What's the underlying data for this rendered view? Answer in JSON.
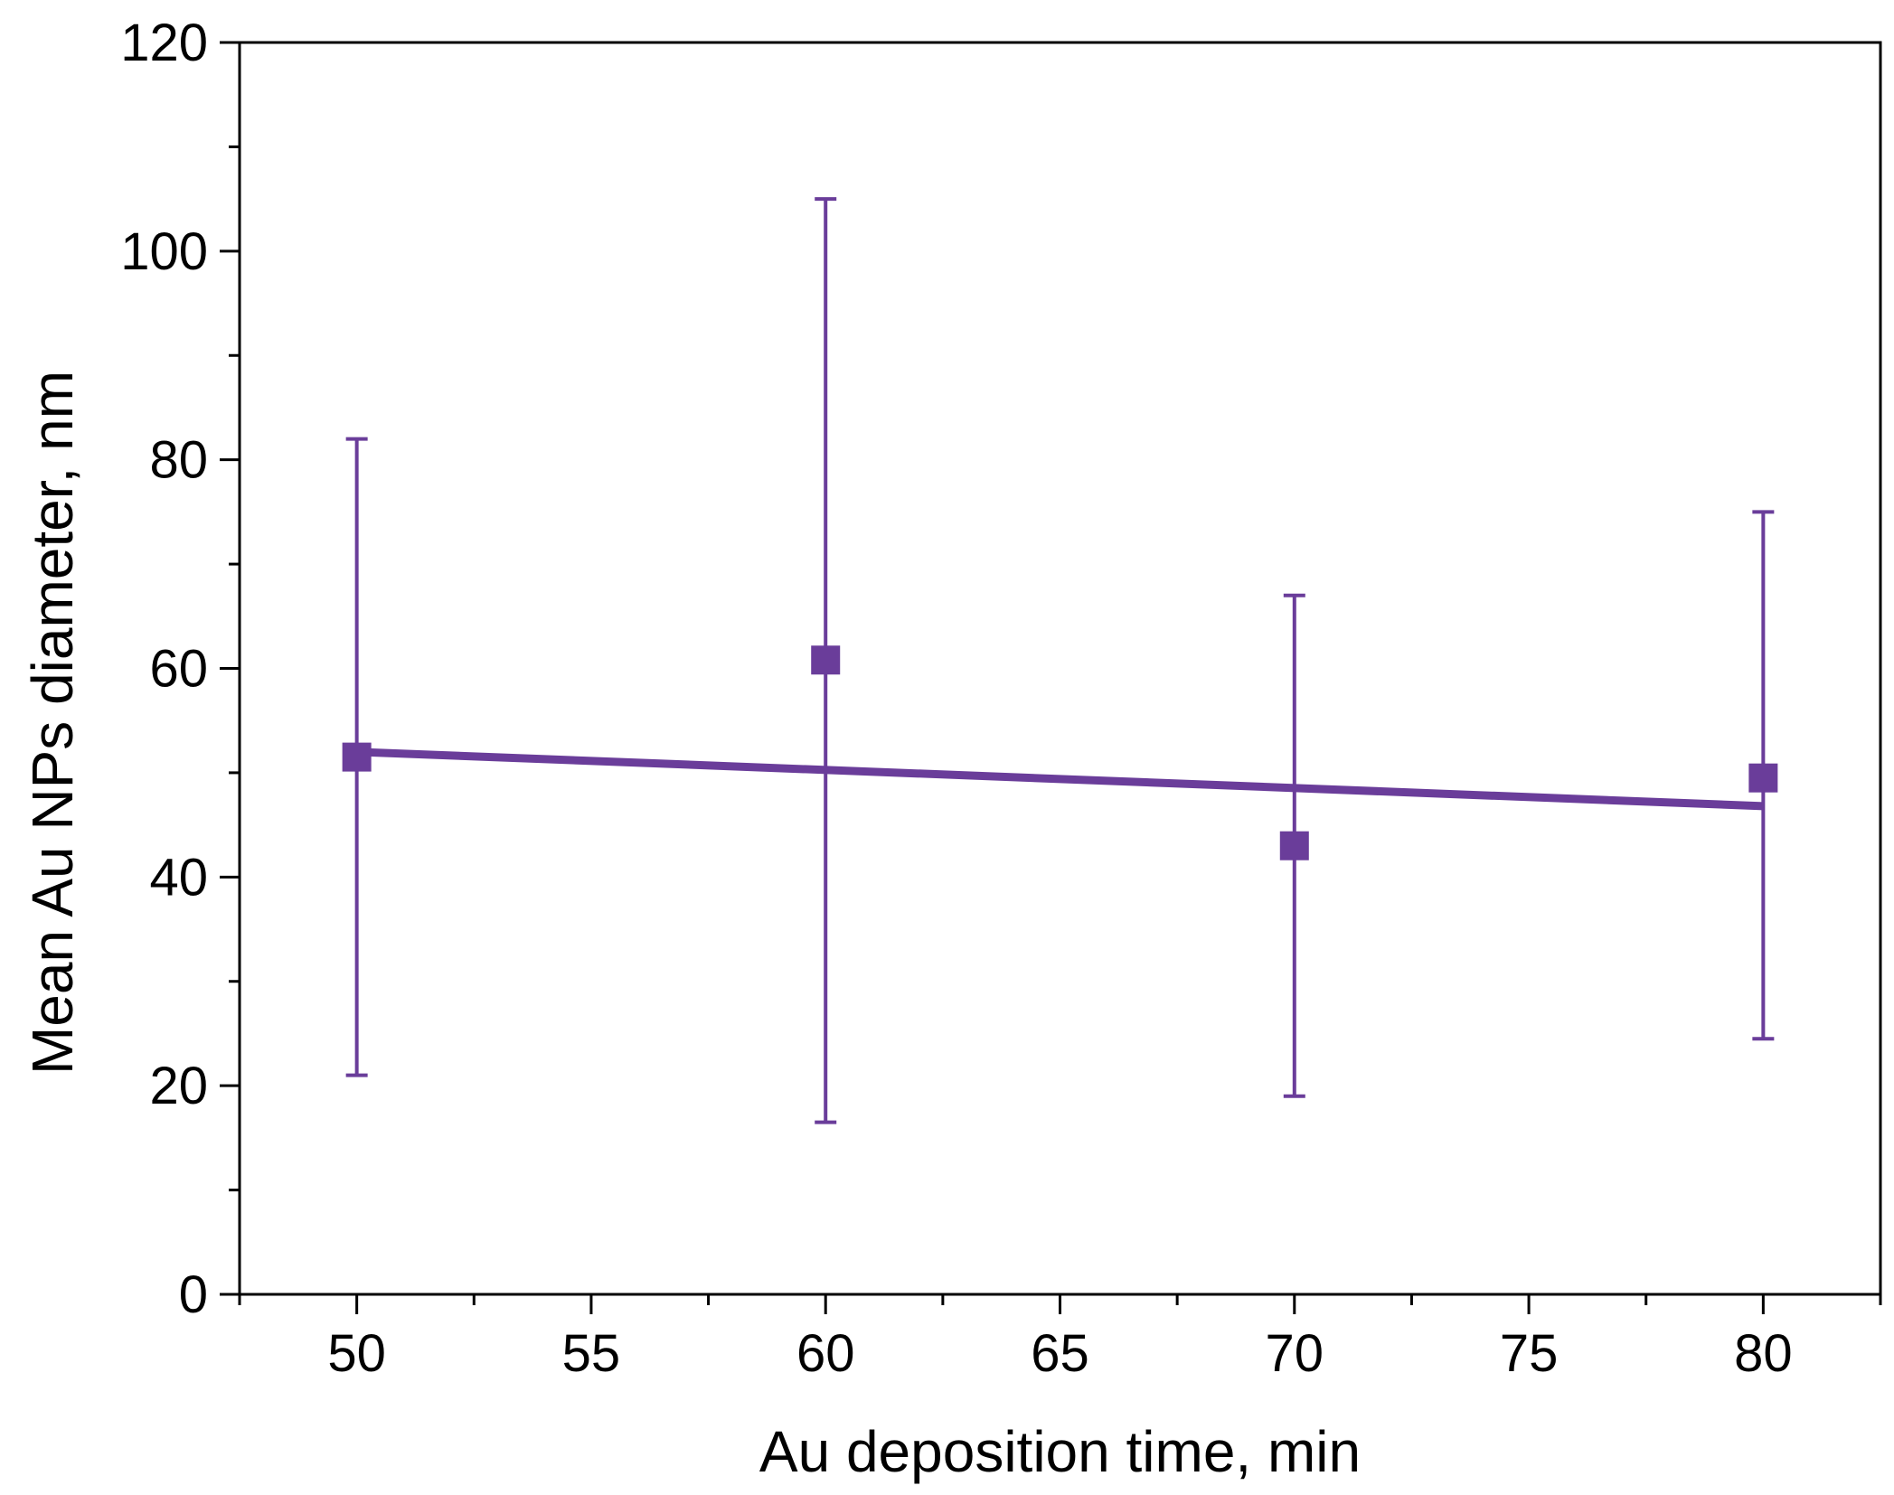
{
  "chart_data": {
    "type": "scatter",
    "xlabel": "Au deposition time, min",
    "ylabel": "Mean Au NPs diameter, nm",
    "xlim": [
      47.5,
      82.5
    ],
    "ylim": [
      0,
      120
    ],
    "x_ticks": [
      50,
      55,
      60,
      65,
      70,
      75,
      80
    ],
    "y_ticks": [
      0,
      20,
      40,
      60,
      80,
      100,
      120
    ],
    "grid": false,
    "legend": "none",
    "color": "#6a3d9a",
    "points": [
      {
        "x": 50,
        "y": 51.5,
        "err_low": 21,
        "err_high": 82
      },
      {
        "x": 60,
        "y": 60.8,
        "err_low": 16.5,
        "err_high": 105
      },
      {
        "x": 70,
        "y": 43,
        "err_low": 19,
        "err_high": 67
      },
      {
        "x": 80,
        "y": 49.5,
        "err_low": 24.5,
        "err_high": 75
      }
    ],
    "fit_line": {
      "x": [
        50,
        80
      ],
      "y": [
        52,
        46.8
      ]
    }
  }
}
